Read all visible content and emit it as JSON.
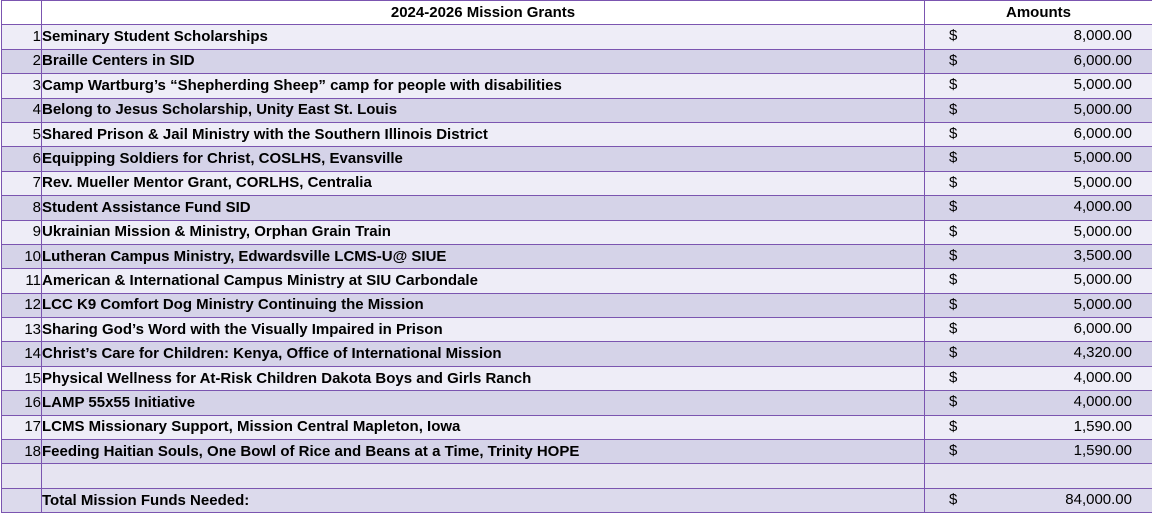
{
  "header": {
    "title": "2024-2026 Mission Grants",
    "amounts_label": "Amounts"
  },
  "rows": [
    {
      "num": "1",
      "name": "Seminary Student Scholarships",
      "currency": "$",
      "amount": "8,000.00"
    },
    {
      "num": "2",
      "name": "Braille Centers in SID",
      "currency": "$",
      "amount": "6,000.00"
    },
    {
      "num": "3",
      "name": "Camp Wartburg’s “Shepherding Sheep” camp for people with disabilities",
      "currency": "$",
      "amount": "5,000.00"
    },
    {
      "num": "4",
      "name": "Belong to Jesus Scholarship, Unity  East St. Louis",
      "currency": "$",
      "amount": "5,000.00"
    },
    {
      "num": "5",
      "name": "Shared Prison & Jail Ministry with the Southern Illinois District",
      "currency": "$",
      "amount": "6,000.00"
    },
    {
      "num": "6",
      "name": "Equipping Soldiers for Christ, COSLHS, Evansville",
      "currency": "$",
      "amount": "5,000.00"
    },
    {
      "num": "7",
      "name": "Rev. Mueller Mentor Grant, CORLHS, Centralia",
      "currency": "$",
      "amount": "5,000.00"
    },
    {
      "num": "8",
      "name": "Student Assistance Fund SID",
      "currency": "$",
      "amount": "4,000.00"
    },
    {
      "num": "9",
      "name": "Ukrainian Mission & Ministry, Orphan Grain Train",
      "currency": "$",
      "amount": "5,000.00"
    },
    {
      "num": "10",
      "name": "Lutheran Campus Ministry, Edwardsville LCMS-U@ SIUE",
      "currency": "$",
      "amount": "3,500.00"
    },
    {
      "num": "11",
      "name": "American & International Campus Ministry at SIU Carbondale",
      "currency": "$",
      "amount": "5,000.00"
    },
    {
      "num": "12",
      "name": "LCC K9 Comfort Dog Ministry Continuing the Mission",
      "currency": "$",
      "amount": "5,000.00"
    },
    {
      "num": "13",
      "name": "Sharing God’s Word with the Visually Impaired in Prison",
      "currency": "$",
      "amount": "6,000.00"
    },
    {
      "num": "14",
      "name": "Christ’s Care for Children: Kenya, Office of International Mission",
      "currency": "$",
      "amount": "4,320.00"
    },
    {
      "num": "15",
      "name": "Physical Wellness for At-Risk Children Dakota Boys and Girls Ranch",
      "currency": "$",
      "amount": "4,000.00"
    },
    {
      "num": "16",
      "name": "LAMP 55x55 Initiative",
      "currency": "$",
      "amount": "4,000.00"
    },
    {
      "num": "17",
      "name": "LCMS Missionary Support, Mission Central Mapleton, Iowa",
      "currency": "$",
      "amount": "1,590.00"
    },
    {
      "num": "18",
      "name": "Feeding Haitian Souls, One Bowl of Rice and Beans at a Time, Trinity HOPE",
      "currency": "$",
      "amount": "1,590.00"
    }
  ],
  "total": {
    "label": "Total Mission Funds Needed:",
    "currency": "$",
    "amount": "84,000.00"
  }
}
